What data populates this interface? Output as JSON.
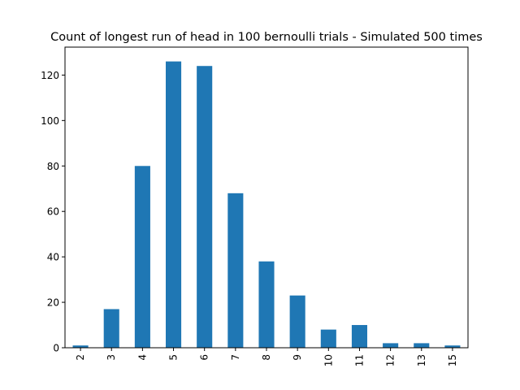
{
  "chart_data": {
    "type": "bar",
    "title": "Count of longest run of head in 100 bernoulli trials - Simulated 500 times",
    "categories": [
      "2",
      "3",
      "4",
      "5",
      "6",
      "7",
      "8",
      "9",
      "10",
      "11",
      "12",
      "13",
      "15"
    ],
    "values": [
      1,
      17,
      80,
      126,
      124,
      68,
      38,
      23,
      8,
      10,
      2,
      2,
      1
    ],
    "xlabel": "",
    "ylabel": "",
    "ylim": [
      0,
      132.3
    ],
    "yticks": [
      0,
      20,
      40,
      60,
      80,
      100,
      120
    ],
    "bar_color": "#1f77b4",
    "grid": false,
    "legend": "none",
    "x_tick_rotation": "vertical"
  }
}
